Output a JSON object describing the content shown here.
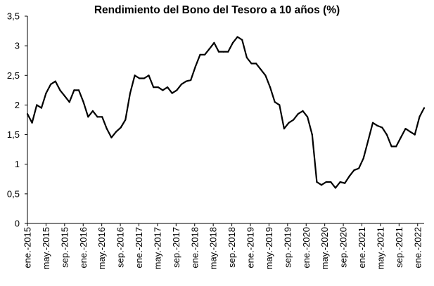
{
  "chart_data": {
    "type": "line",
    "title": "Rendimiento del Bono del Tesoro a 10 años (%)",
    "xlabel": "",
    "ylabel": "",
    "ylim": [
      0,
      3.5
    ],
    "grid": false,
    "legend": "none",
    "line_color": "#000000",
    "y_ticks": [
      "0",
      "0,5",
      "1",
      "1,5",
      "2",
      "2,5",
      "3",
      "3,5"
    ],
    "x_ticks": [
      "ene.-2015",
      "may.-2015",
      "sep.-2015",
      "ene.-2016",
      "may.-2016",
      "sep.-2016",
      "ene.-2017",
      "may.-2017",
      "sep.-2017",
      "ene.-2018",
      "may.-2018",
      "sep.-2018",
      "ene.-2019",
      "may.-2019",
      "sep.-2019",
      "ene.-2020",
      "may.-2020",
      "sep.-2020",
      "ene.-2021",
      "may.-2021",
      "sep.-2021",
      "ene.-2022"
    ],
    "x": [
      "2015-01",
      "2015-02",
      "2015-03",
      "2015-04",
      "2015-05",
      "2015-06",
      "2015-07",
      "2015-08",
      "2015-09",
      "2015-10",
      "2015-11",
      "2015-12",
      "2016-01",
      "2016-02",
      "2016-03",
      "2016-04",
      "2016-05",
      "2016-06",
      "2016-07",
      "2016-08",
      "2016-09",
      "2016-10",
      "2016-11",
      "2016-12",
      "2017-01",
      "2017-02",
      "2017-03",
      "2017-04",
      "2017-05",
      "2017-06",
      "2017-07",
      "2017-08",
      "2017-09",
      "2017-10",
      "2017-11",
      "2017-12",
      "2018-01",
      "2018-02",
      "2018-03",
      "2018-04",
      "2018-05",
      "2018-06",
      "2018-07",
      "2018-08",
      "2018-09",
      "2018-10",
      "2018-11",
      "2018-12",
      "2019-01",
      "2019-02",
      "2019-03",
      "2019-04",
      "2019-05",
      "2019-06",
      "2019-07",
      "2019-08",
      "2019-09",
      "2019-10",
      "2019-11",
      "2019-12",
      "2020-01",
      "2020-02",
      "2020-03",
      "2020-04",
      "2020-05",
      "2020-06",
      "2020-07",
      "2020-08",
      "2020-09",
      "2020-10",
      "2020-11",
      "2020-12",
      "2021-01",
      "2021-02",
      "2021-03",
      "2021-04",
      "2021-05",
      "2021-06",
      "2021-07",
      "2021-08",
      "2021-09",
      "2021-10",
      "2021-11",
      "2021-12",
      "2022-01",
      "2022-02"
    ],
    "values": [
      1.85,
      1.7,
      2.0,
      1.95,
      2.2,
      2.35,
      2.4,
      2.25,
      2.15,
      2.05,
      2.25,
      2.25,
      2.05,
      1.8,
      1.9,
      1.8,
      1.8,
      1.6,
      1.45,
      1.55,
      1.62,
      1.75,
      2.2,
      2.5,
      2.45,
      2.45,
      2.5,
      2.3,
      2.3,
      2.25,
      2.3,
      2.2,
      2.25,
      2.35,
      2.4,
      2.42,
      2.65,
      2.85,
      2.85,
      2.95,
      3.05,
      2.9,
      2.9,
      2.9,
      3.05,
      3.15,
      3.1,
      2.8,
      2.7,
      2.7,
      2.6,
      2.5,
      2.3,
      2.05,
      2.0,
      1.6,
      1.7,
      1.75,
      1.85,
      1.9,
      1.8,
      1.5,
      0.7,
      0.65,
      0.7,
      0.7,
      0.6,
      0.7,
      0.68,
      0.8,
      0.9,
      0.93,
      1.1,
      1.4,
      1.7,
      1.65,
      1.62,
      1.5,
      1.3,
      1.3,
      1.45,
      1.6,
      1.55,
      1.5,
      1.8,
      1.95
    ]
  }
}
